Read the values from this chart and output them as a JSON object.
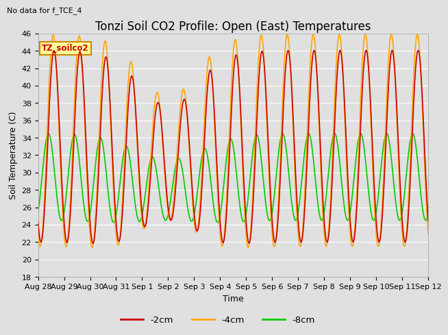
{
  "title": "Tonzi Soil CO2 Profile: Open (East) Temperatures",
  "subtitle": "No data for f_TCE_4",
  "xlabel": "Time",
  "ylabel": "Soil Temperature (C)",
  "ylim": [
    18,
    46
  ],
  "yticks": [
    18,
    20,
    22,
    24,
    26,
    28,
    30,
    32,
    34,
    36,
    38,
    40,
    42,
    44,
    46
  ],
  "xtick_labels": [
    "Aug 28",
    "Aug 29",
    "Aug 30",
    "Aug 31",
    "Sep 1",
    "Sep 2",
    "Sep 3",
    "Sep 4",
    "Sep 5",
    "Sep 6",
    "Sep 7",
    "Sep 8",
    "Sep 9",
    "Sep 10",
    "Sep 11",
    "Sep 12"
  ],
  "legend_label": "TZ_soilco2",
  "series_labels": [
    "-2cm",
    "-4cm",
    "-8cm"
  ],
  "series_colors": [
    "#cc0000",
    "#ffa500",
    "#00cc00"
  ],
  "series_linewidths": [
    1.2,
    1.2,
    1.2
  ],
  "background_color": "#e0e0e0",
  "title_fontsize": 12,
  "label_fontsize": 9,
  "tick_fontsize": 8,
  "grid_color": "#ffffff",
  "legend_box_color": "#ffff99",
  "legend_box_edge": "#cc8800"
}
